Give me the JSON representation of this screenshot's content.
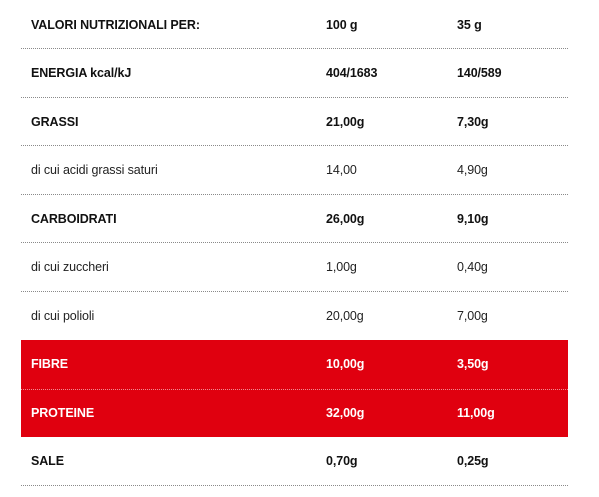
{
  "header": {
    "label": "VALORI NUTRIZIONALI PER:",
    "col1": "100 g",
    "col2": "35 g"
  },
  "rows": [
    {
      "label": "ENERGIA kcal/kJ",
      "col1": "404/1683",
      "col2": "140/589",
      "style": "bold"
    },
    {
      "label": "GRASSI",
      "col1": "21,00g",
      "col2": "7,30g",
      "style": "bold"
    },
    {
      "label": "di cui acidi grassi saturi",
      "col1": "14,00",
      "col2": "4,90g",
      "style": "light"
    },
    {
      "label": "CARBOIDRATI",
      "col1": "26,00g",
      "col2": "9,10g",
      "style": "bold"
    },
    {
      "label": "di cui zuccheri",
      "col1": "1,00g",
      "col2": "0,40g",
      "style": "light"
    },
    {
      "label": "di cui polioli",
      "col1": "20,00g",
      "col2": "7,00g",
      "style": "light"
    },
    {
      "label": "FIBRE",
      "col1": "10,00g",
      "col2": "3,50g",
      "style": "highlight"
    },
    {
      "label": "PROTEINE",
      "col1": "32,00g",
      "col2": "11,00g",
      "style": "highlight"
    },
    {
      "label": "SALE",
      "col1": "0,70g",
      "col2": "0,25g",
      "style": "bold"
    }
  ],
  "colors": {
    "highlight": "#e0000f",
    "divider": "#8a8a8a"
  }
}
